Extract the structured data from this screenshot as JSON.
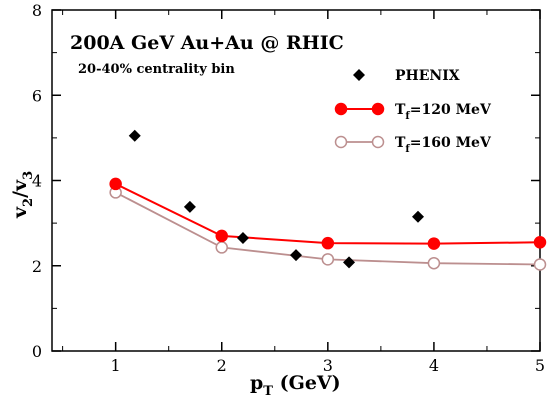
{
  "chart_data": {
    "type": "line",
    "title": "200A GeV Au+Au @ RHIC",
    "subtitle": "20-40% centrality bin",
    "xlabel": {
      "main": "p",
      "sub": "T",
      "rest": " (GeV)"
    },
    "ylabel": {
      "a": "v",
      "a_sub": "2",
      "sep": "/",
      "b": "v",
      "b_sub": "3"
    },
    "xlim": [
      0.4,
      5.0
    ],
    "ylim": [
      0,
      8
    ],
    "xticks": [
      1,
      2,
      3,
      4,
      5
    ],
    "yticks": [
      0,
      2,
      4,
      6,
      8
    ],
    "grid": false,
    "legend_position": "top-right",
    "series": [
      {
        "name": "PHENIX",
        "marker": "diamond",
        "color": "#000000",
        "line": false,
        "x": [
          1.18,
          1.7,
          2.2,
          2.7,
          3.2,
          3.85
        ],
        "y": [
          5.05,
          3.38,
          2.65,
          2.25,
          2.08,
          3.15
        ]
      },
      {
        "name": {
          "main": "T",
          "sub": "f",
          "rest": "=120 MeV"
        },
        "marker": "filled-circle",
        "color": "#ff0000",
        "line": true,
        "x": [
          1,
          2,
          3,
          4,
          5
        ],
        "y": [
          3.92,
          2.7,
          2.53,
          2.52,
          2.55
        ]
      },
      {
        "name": {
          "main": "T",
          "sub": "f",
          "rest": "=160 MeV"
        },
        "marker": "open-circle",
        "color": "#bc8f8f",
        "line": true,
        "x": [
          1,
          2,
          3,
          4,
          5
        ],
        "y": [
          3.72,
          2.43,
          2.15,
          2.06,
          2.03
        ]
      }
    ]
  }
}
